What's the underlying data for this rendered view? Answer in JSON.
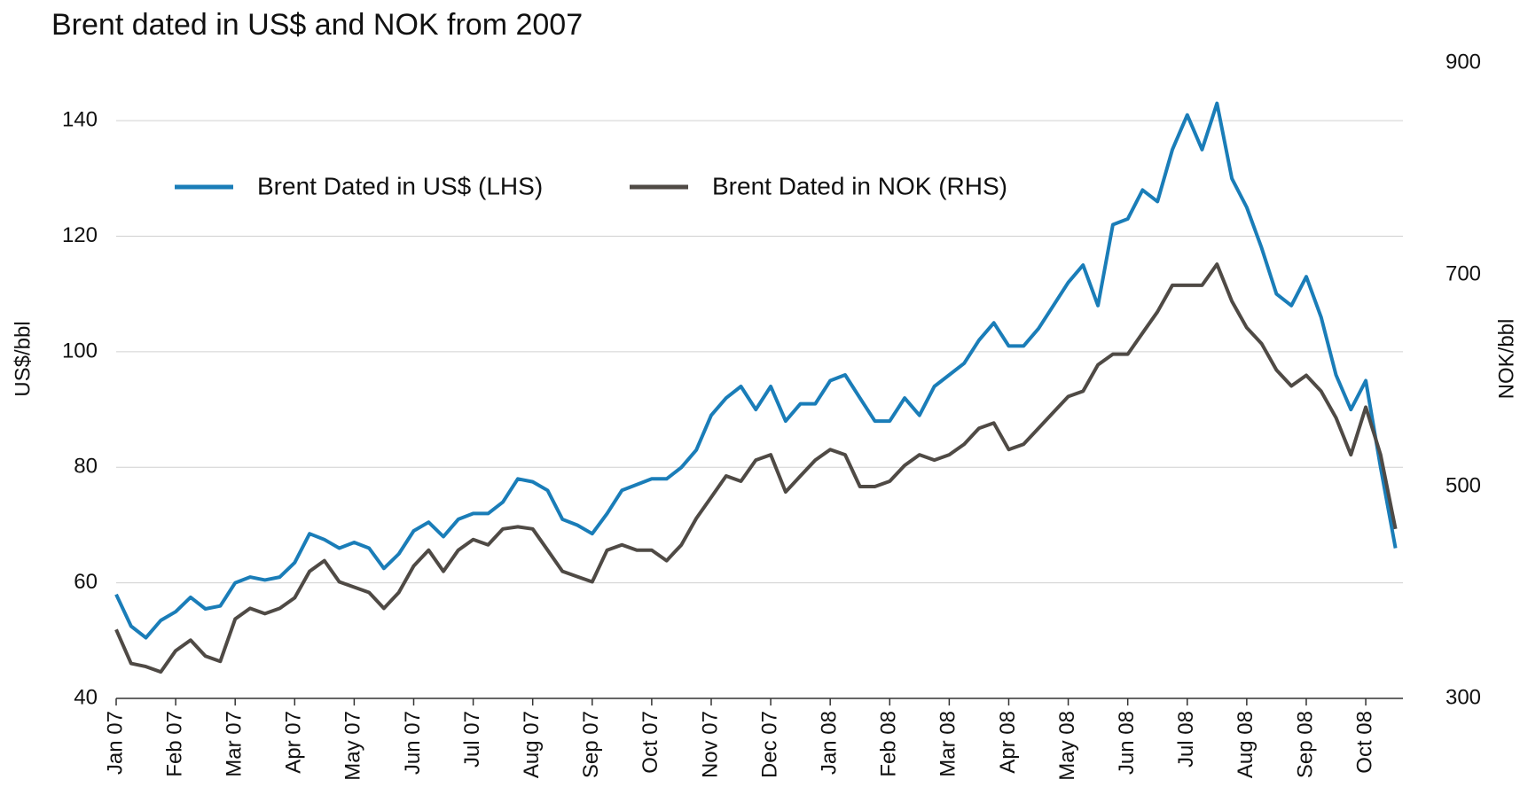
{
  "chart_data": {
    "type": "line",
    "title": "Brent dated in US$ and NOK from 2007",
    "y_label": "US$/bbl",
    "y2_label": "NOK/bbl",
    "categories": [
      "Jan 07",
      null,
      null,
      null,
      "Feb 07",
      null,
      null,
      null,
      "Mar  07",
      null,
      null,
      null,
      "Apr 07",
      null,
      null,
      null,
      "May 07",
      null,
      null,
      null,
      "Jun 07",
      null,
      null,
      null,
      "Jul 07",
      null,
      null,
      null,
      "Aug 07",
      null,
      null,
      null,
      "Sep 07",
      null,
      null,
      null,
      "Oct 07",
      null,
      null,
      null,
      "Nov 07",
      null,
      null,
      null,
      "Dec 07",
      null,
      null,
      null,
      "Jan 08",
      null,
      null,
      null,
      "Feb 08",
      null,
      null,
      null,
      "Mar 08",
      null,
      null,
      null,
      "Apr 08",
      null,
      null,
      null,
      "May 08",
      null,
      null,
      null,
      "Jun 08",
      null,
      null,
      null,
      "Jul 08",
      null,
      null,
      null,
      "Aug 08",
      null,
      null,
      null,
      "Sep 08",
      null,
      null,
      null,
      "Oct 08",
      null,
      null
    ],
    "series": [
      {
        "name": "Brent Dated in US$ (LHS)",
        "color": "#1a7db8",
        "values": [
          58,
          52.5,
          50.5,
          53.5,
          55,
          57.5,
          55.5,
          56,
          60,
          61,
          60.5,
          61,
          63.5,
          68.5,
          67.5,
          66,
          67,
          66,
          62.5,
          65,
          69,
          70.5,
          68,
          71,
          72,
          72,
          74,
          78,
          77.5,
          76,
          71,
          70,
          68.5,
          72,
          76,
          77,
          78,
          78,
          80,
          83,
          89,
          92,
          94,
          90,
          94,
          88,
          91,
          91,
          95,
          96,
          92,
          88,
          88,
          92,
          89,
          94,
          96,
          98,
          102,
          105,
          101,
          101,
          104,
          108,
          112,
          115,
          108,
          122,
          123,
          128,
          126,
          135,
          141,
          135,
          143,
          130,
          125,
          118,
          110,
          108,
          113,
          106,
          96,
          90,
          95,
          80,
          66
        ]
      },
      {
        "name": "Brent Dated in NOK (RHS)",
        "color": "#4f4a45",
        "axis": "y2",
        "values": [
          365,
          333,
          330,
          325,
          345,
          355,
          340,
          335,
          375,
          385,
          380,
          385,
          395,
          420,
          430,
          410,
          405,
          400,
          385,
          400,
          425,
          440,
          420,
          440,
          450,
          445,
          460,
          462,
          460,
          440,
          420,
          415,
          410,
          440,
          445,
          440,
          440,
          430,
          445,
          470,
          490,
          510,
          505,
          525,
          530,
          495,
          510,
          525,
          535,
          530,
          500,
          500,
          505,
          520,
          530,
          525,
          530,
          540,
          555,
          560,
          535,
          540,
          555,
          570,
          585,
          590,
          615,
          625,
          625,
          645,
          665,
          690,
          690,
          690,
          710,
          675,
          650,
          635,
          610,
          595,
          605,
          590,
          565,
          530,
          575,
          530,
          460
        ]
      }
    ],
    "ylim": [
      40,
      150
    ],
    "yticks": [
      40,
      60,
      80,
      100,
      120,
      140
    ],
    "y2lim": [
      300,
      900
    ],
    "y2ticks": [
      300,
      500,
      700,
      900
    ],
    "grid": true,
    "legend": "upper left"
  }
}
